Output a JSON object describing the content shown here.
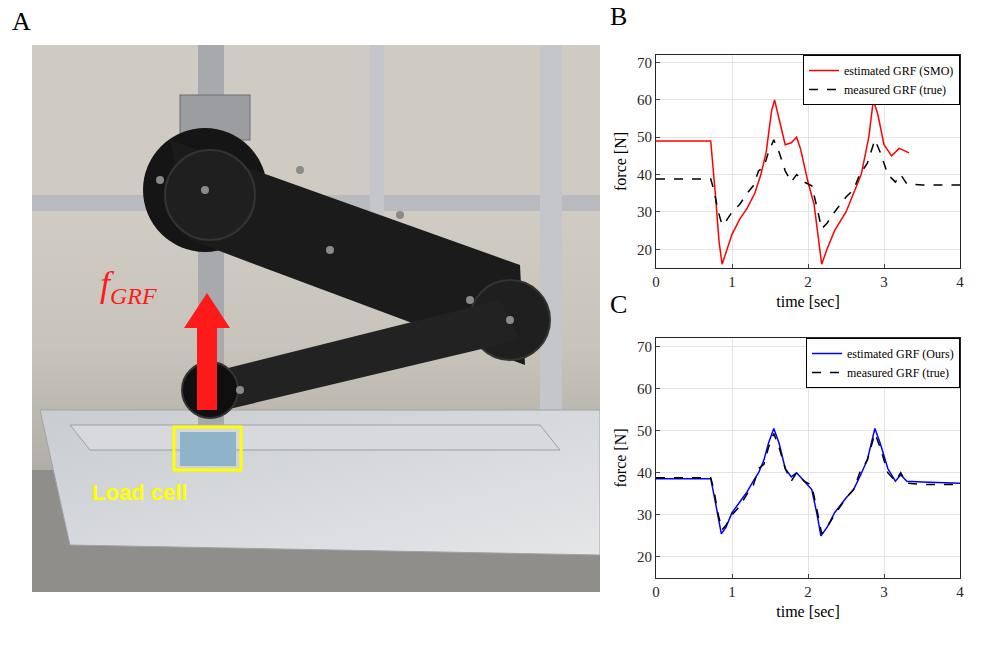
{
  "figure": {
    "panel_a": {
      "letter": "A",
      "force_label": {
        "symbol": "f",
        "subscript": "GRF"
      },
      "sensor_label": "Load cell"
    },
    "panel_letters": [
      "B",
      "C"
    ]
  },
  "chart_data": [
    {
      "type": "line",
      "x_label": "time [sec]",
      "y_label": "force [N]",
      "xlim": [
        0,
        4
      ],
      "xticks": [
        0,
        1,
        2,
        3,
        4
      ],
      "ylim": [
        15,
        72
      ],
      "yticks": [
        20,
        30,
        40,
        50,
        60,
        70
      ],
      "grid": true,
      "legend": "top right",
      "series": [
        {
          "name": "estimated GRF (SMO)",
          "color": "#ff0000",
          "line_style": "solid",
          "x": [
            0,
            0.72,
            0.78,
            0.83,
            0.87,
            0.92,
            1.0,
            1.1,
            1.2,
            1.3,
            1.38,
            1.45,
            1.52,
            1.56,
            1.62,
            1.7,
            1.78,
            1.85,
            1.9,
            2.0,
            2.08,
            2.15,
            2.18,
            2.25,
            2.35,
            2.5,
            2.6,
            2.7,
            2.8,
            2.86,
            2.92,
            3.0,
            3.1,
            3.2,
            3.33
          ],
          "values": [
            49,
            49,
            35,
            22,
            16,
            19,
            24,
            28,
            31,
            35,
            40,
            46,
            57,
            60,
            55,
            48,
            48.5,
            50,
            47,
            38,
            32,
            20,
            16,
            20,
            25,
            30,
            35,
            40,
            50,
            60,
            56,
            48,
            45,
            47,
            45.8
          ]
        },
        {
          "name": "measured GRF (true)",
          "color": "#000000",
          "line_style": "dashed",
          "x": [
            0,
            0.72,
            0.76,
            0.82,
            0.87,
            0.92,
            1.0,
            1.1,
            1.2,
            1.28,
            1.35,
            1.42,
            1.48,
            1.55,
            1.62,
            1.7,
            1.78,
            1.85,
            1.95,
            2.05,
            2.12,
            2.18,
            2.25,
            2.35,
            2.5,
            2.6,
            2.68,
            2.78,
            2.88,
            2.95,
            3.05,
            3.15,
            3.22,
            3.3,
            3.5,
            4
          ],
          "values": [
            38.8,
            38.8,
            36,
            30,
            26.5,
            27.5,
            30,
            32,
            35,
            37,
            41,
            42,
            46,
            49.3,
            46,
            41,
            38,
            40,
            38,
            37,
            31,
            25.5,
            27,
            30,
            34,
            36,
            40,
            43,
            49.3,
            46,
            40,
            38,
            40,
            37.5,
            37.2,
            37.2
          ]
        }
      ]
    },
    {
      "type": "line",
      "x_label": "time [sec]",
      "y_label": "force [N]",
      "xlim": [
        0,
        4
      ],
      "xticks": [
        0,
        1,
        2,
        3,
        4
      ],
      "ylim": [
        15,
        72
      ],
      "yticks": [
        20,
        30,
        40,
        50,
        60,
        70
      ],
      "grid": true,
      "legend": "top right",
      "series": [
        {
          "name": "estimated GRF (Ours)",
          "color": "#0000ff",
          "line_style": "solid",
          "x": [
            0,
            0.72,
            0.76,
            0.82,
            0.86,
            0.92,
            1.0,
            1.1,
            1.2,
            1.28,
            1.35,
            1.42,
            1.48,
            1.55,
            1.62,
            1.7,
            1.78,
            1.85,
            1.95,
            2.05,
            2.12,
            2.17,
            2.25,
            2.35,
            2.5,
            2.6,
            2.68,
            2.78,
            2.88,
            2.95,
            3.05,
            3.15,
            3.22,
            3.3,
            3.5,
            4
          ],
          "values": [
            38.6,
            38.6,
            35,
            29,
            25.5,
            27,
            30.5,
            33,
            35.5,
            38,
            40,
            43,
            47,
            50.5,
            47,
            41,
            39,
            40,
            38,
            36,
            30,
            25,
            27,
            30.5,
            34,
            36,
            39,
            43,
            50.5,
            47,
            41,
            38,
            39.5,
            38,
            37.8,
            37.5
          ]
        },
        {
          "name": "measured GRF (true)",
          "color": "#000000",
          "line_style": "dashed",
          "x": [
            0,
            0.72,
            0.76,
            0.82,
            0.87,
            0.92,
            1.0,
            1.1,
            1.2,
            1.28,
            1.35,
            1.42,
            1.48,
            1.55,
            1.62,
            1.7,
            1.78,
            1.85,
            1.95,
            2.05,
            2.12,
            2.18,
            2.25,
            2.35,
            2.5,
            2.6,
            2.68,
            2.78,
            2.88,
            2.95,
            3.05,
            3.15,
            3.22,
            3.3,
            3.5,
            4
          ],
          "values": [
            38.8,
            38.8,
            36,
            30,
            26.5,
            27.5,
            30,
            32,
            35,
            37,
            41,
            42,
            46,
            49.3,
            46,
            41,
            38,
            40,
            38,
            37,
            31,
            25.5,
            27,
            30,
            34,
            36,
            40,
            43,
            49.3,
            46,
            40,
            38,
            40,
            37.5,
            37.2,
            37.2
          ]
        }
      ]
    }
  ]
}
